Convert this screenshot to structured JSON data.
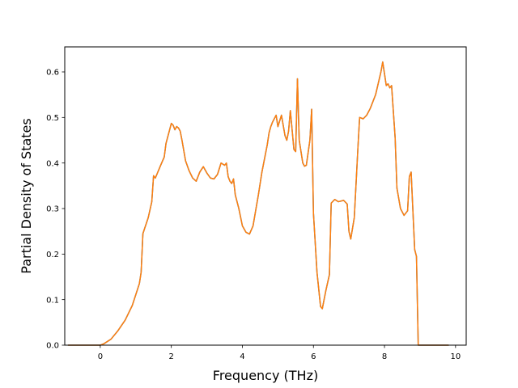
{
  "chart_data": {
    "type": "line",
    "title": "",
    "xlabel": "Frequency (THz)",
    "ylabel": "Partial Density of States",
    "xlim": [
      -1.0,
      10.3
    ],
    "ylim": [
      0.0,
      0.655
    ],
    "xticks": [
      0,
      2,
      4,
      6,
      8,
      10
    ],
    "xtick_labels": [
      "0",
      "2",
      "4",
      "6",
      "8",
      "10"
    ],
    "yticks": [
      0.0,
      0.1,
      0.2,
      0.3,
      0.4,
      0.5,
      0.6
    ],
    "ytick_labels": [
      "0.0",
      "0.1",
      "0.2",
      "0.3",
      "0.4",
      "0.5",
      "0.6"
    ],
    "grid": false,
    "legend": "none",
    "series": [
      {
        "color": "#1f77b4",
        "x": [
          -0.9,
          0.0,
          0.1,
          0.3,
          0.5,
          0.7,
          0.9,
          1.1,
          1.15,
          1.2,
          1.35,
          1.45,
          1.5,
          1.55,
          1.7,
          1.8,
          1.85,
          2.0,
          2.05,
          2.1,
          2.15,
          2.2,
          2.25,
          2.3,
          2.4,
          2.5,
          2.6,
          2.7,
          2.8,
          2.9,
          3.0,
          3.1,
          3.2,
          3.3,
          3.4,
          3.5,
          3.55,
          3.6,
          3.65,
          3.7,
          3.75,
          3.8,
          3.9,
          4.0,
          4.1,
          4.2,
          4.3,
          4.45,
          4.55,
          4.7,
          4.75,
          4.8,
          4.85,
          4.95,
          5.0,
          5.1,
          5.2,
          5.25,
          5.3,
          5.35,
          5.45,
          5.5,
          5.55,
          5.6,
          5.7,
          5.75,
          5.8,
          5.9,
          5.95,
          6.0,
          6.1,
          6.2,
          6.25,
          6.35,
          6.45,
          6.5,
          6.6,
          6.7,
          6.85,
          6.95,
          7.0,
          7.05,
          7.15,
          7.25,
          7.3,
          7.4,
          7.5,
          7.6,
          7.75,
          7.9,
          7.95,
          8.05,
          8.1,
          8.15,
          8.2,
          8.3,
          8.35,
          8.45,
          8.55,
          8.65,
          8.7,
          8.75,
          8.85,
          8.9,
          8.95,
          9.5,
          9.8
        ],
        "y": [
          0.0,
          0.0,
          0.003,
          0.013,
          0.032,
          0.055,
          0.087,
          0.135,
          0.16,
          0.245,
          0.28,
          0.315,
          0.372,
          0.367,
          0.395,
          0.413,
          0.443,
          0.487,
          0.483,
          0.473,
          0.48,
          0.477,
          0.47,
          0.45,
          0.405,
          0.383,
          0.367,
          0.36,
          0.38,
          0.392,
          0.378,
          0.367,
          0.365,
          0.375,
          0.4,
          0.395,
          0.4,
          0.37,
          0.36,
          0.355,
          0.365,
          0.33,
          0.3,
          0.262,
          0.248,
          0.244,
          0.262,
          0.33,
          0.38,
          0.44,
          0.466,
          0.48,
          0.49,
          0.505,
          0.48,
          0.505,
          0.46,
          0.45,
          0.47,
          0.515,
          0.43,
          0.425,
          0.585,
          0.45,
          0.4,
          0.393,
          0.395,
          0.45,
          0.518,
          0.29,
          0.16,
          0.085,
          0.08,
          0.12,
          0.155,
          0.312,
          0.32,
          0.315,
          0.318,
          0.31,
          0.25,
          0.233,
          0.28,
          0.43,
          0.5,
          0.497,
          0.505,
          0.52,
          0.55,
          0.6,
          0.622,
          0.57,
          0.574,
          0.565,
          0.57,
          0.455,
          0.345,
          0.3,
          0.285,
          0.295,
          0.37,
          0.38,
          0.21,
          0.195,
          0.0,
          0.0,
          0.0
        ]
      },
      {
        "color": "#ff7f0e",
        "x": [
          -0.9,
          0.0,
          0.1,
          0.3,
          0.5,
          0.7,
          0.9,
          1.1,
          1.15,
          1.2,
          1.35,
          1.45,
          1.5,
          1.55,
          1.7,
          1.8,
          1.85,
          2.0,
          2.05,
          2.1,
          2.15,
          2.2,
          2.25,
          2.3,
          2.4,
          2.5,
          2.6,
          2.7,
          2.8,
          2.9,
          3.0,
          3.1,
          3.2,
          3.3,
          3.4,
          3.5,
          3.55,
          3.6,
          3.65,
          3.7,
          3.75,
          3.8,
          3.9,
          4.0,
          4.1,
          4.2,
          4.3,
          4.45,
          4.55,
          4.7,
          4.75,
          4.8,
          4.85,
          4.95,
          5.0,
          5.1,
          5.2,
          5.25,
          5.3,
          5.35,
          5.45,
          5.5,
          5.55,
          5.6,
          5.7,
          5.75,
          5.8,
          5.9,
          5.95,
          6.0,
          6.1,
          6.2,
          6.25,
          6.35,
          6.45,
          6.5,
          6.6,
          6.7,
          6.85,
          6.95,
          7.0,
          7.05,
          7.15,
          7.25,
          7.3,
          7.4,
          7.5,
          7.6,
          7.75,
          7.9,
          7.95,
          8.05,
          8.1,
          8.15,
          8.2,
          8.3,
          8.35,
          8.45,
          8.55,
          8.65,
          8.7,
          8.75,
          8.85,
          8.9,
          8.95,
          9.5,
          9.8
        ],
        "y": [
          0.0,
          0.0,
          0.003,
          0.013,
          0.032,
          0.055,
          0.087,
          0.135,
          0.16,
          0.245,
          0.28,
          0.315,
          0.372,
          0.367,
          0.395,
          0.413,
          0.443,
          0.487,
          0.483,
          0.473,
          0.48,
          0.477,
          0.47,
          0.45,
          0.405,
          0.383,
          0.367,
          0.36,
          0.38,
          0.392,
          0.378,
          0.367,
          0.365,
          0.375,
          0.4,
          0.395,
          0.4,
          0.37,
          0.36,
          0.355,
          0.365,
          0.33,
          0.3,
          0.262,
          0.248,
          0.244,
          0.262,
          0.33,
          0.38,
          0.44,
          0.466,
          0.48,
          0.49,
          0.505,
          0.48,
          0.505,
          0.46,
          0.45,
          0.47,
          0.515,
          0.43,
          0.425,
          0.585,
          0.45,
          0.4,
          0.393,
          0.395,
          0.45,
          0.518,
          0.29,
          0.16,
          0.085,
          0.08,
          0.12,
          0.155,
          0.312,
          0.32,
          0.315,
          0.318,
          0.31,
          0.25,
          0.233,
          0.28,
          0.43,
          0.5,
          0.497,
          0.505,
          0.52,
          0.55,
          0.6,
          0.622,
          0.57,
          0.574,
          0.565,
          0.57,
          0.455,
          0.345,
          0.3,
          0.285,
          0.295,
          0.37,
          0.38,
          0.21,
          0.195,
          0.0,
          0.0,
          0.0
        ]
      }
    ]
  }
}
